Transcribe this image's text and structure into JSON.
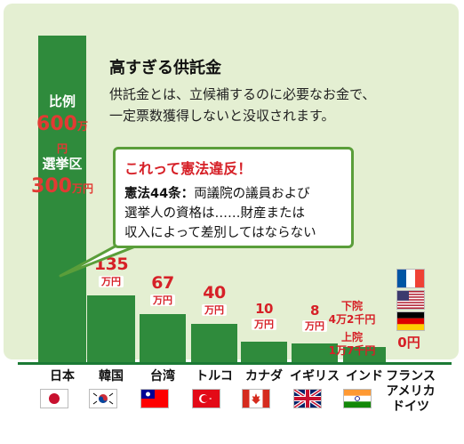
{
  "title": "高すぎる供託金",
  "description": [
    "供託金とは、立候補するのに必要なお金で、",
    "一定票数獲得しないと没収されます。"
  ],
  "callout": {
    "title": "これって憲法違反！",
    "article": "憲法44条：",
    "lines": [
      "両議院の議員および",
      "選挙人の資格は……財産または",
      "収入によって差別してはならない"
    ]
  },
  "japan_labels": {
    "proportional_label": "比例",
    "proportional_value": "600",
    "district_label": "選挙区",
    "district_value": "300",
    "unit": "万円"
  },
  "india_labels": {
    "lower_label": "下院",
    "lower_value": "4万2千円",
    "upper_label": "上院",
    "upper_value": "1万7千円"
  },
  "zero_label": "0円",
  "chart_data": {
    "type": "bar",
    "title": "高すぎる供託金",
    "unit": "万円",
    "categories": [
      "日本",
      "韓国",
      "台湾",
      "トルコ",
      "カナダ",
      "イギリス",
      "インド",
      "フランス/アメリカ/ドイツ"
    ],
    "values": [
      600,
      135,
      67,
      40,
      10,
      8,
      4.2,
      0
    ],
    "value_labels": [
      "",
      "135",
      "67",
      "40",
      "10",
      "8",
      "",
      ""
    ],
    "grid": false,
    "legend": "none"
  },
  "categories_display": [
    "日本",
    "韓国",
    "台湾",
    "トルコ",
    "カナダ",
    "イギリス",
    "インド",
    "フランス\nアメリカ\nドイツ"
  ],
  "flags": [
    "japan-flag",
    "korea-flag",
    "taiwan-flag",
    "turkey-flag",
    "canada-flag",
    "uk-flag",
    "india-flag"
  ],
  "flags_stack": [
    "france-flag",
    "usa-flag",
    "germany-flag"
  ],
  "colors": {
    "bar": "#2f8b3c",
    "panel": "#e4efd2",
    "accent": "#d62027",
    "callout_border": "#5a9e3a"
  }
}
